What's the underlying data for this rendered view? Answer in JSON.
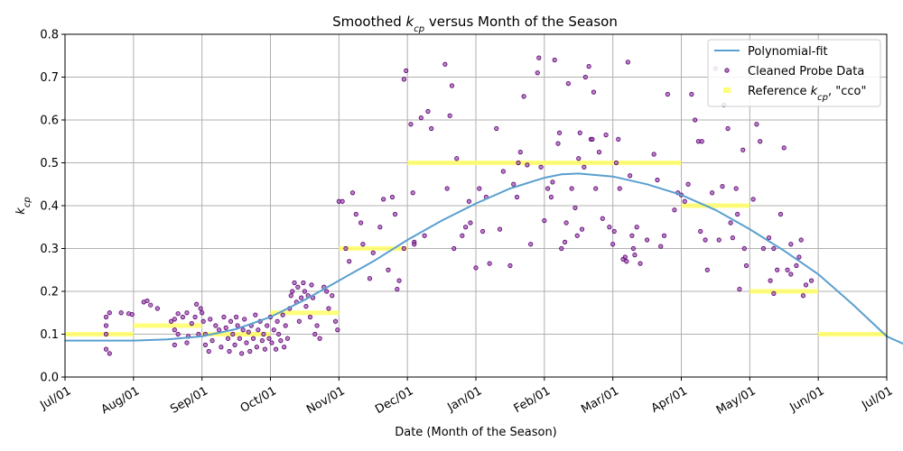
{
  "chart_data": {
    "type": "scatter",
    "title_parts": [
      "Smoothed ",
      "k",
      "cp",
      " versus Month of the Season"
    ],
    "xlabel": "Date (Month of the Season)",
    "ylabel_parts": [
      "k",
      "cp"
    ],
    "x_ticks": [
      "Jul/01",
      "Aug/01",
      "Sep/01",
      "Oct/01",
      "Nov/01",
      "Dec/01",
      "Jan/01",
      "Feb/01",
      "Mar/01",
      "Apr/01",
      "May/01",
      "Jun/01",
      "Jul/01"
    ],
    "y_ticks": [
      "0.0",
      "0.1",
      "0.2",
      "0.3",
      "0.4",
      "0.5",
      "0.6",
      "0.7",
      "0.8"
    ],
    "ylim": [
      0,
      0.8
    ],
    "grid": true,
    "legend_position": "top-right",
    "legend": [
      {
        "label": "Polynomial-fit"
      },
      {
        "label": "Cleaned Probe Data"
      },
      {
        "label_parts": [
          "Reference ",
          "k",
          "cp",
          ", \"cco\""
        ]
      }
    ],
    "colors": {
      "fit": "#5a9fcf",
      "probe_fill": "#a050b0",
      "probe_edge": "#5a0070",
      "reference": "#ffff66"
    },
    "series": [
      {
        "name": "Polynomial-fit",
        "kind": "line",
        "points": [
          [
            0,
            0.085
          ],
          [
            0.5,
            0.085
          ],
          [
            1,
            0.085
          ],
          [
            1.5,
            0.088
          ],
          [
            2,
            0.095
          ],
          [
            2.5,
            0.112
          ],
          [
            3,
            0.14
          ],
          [
            3.5,
            0.18
          ],
          [
            4,
            0.225
          ],
          [
            4.5,
            0.27
          ],
          [
            5,
            0.32
          ],
          [
            5.5,
            0.365
          ],
          [
            6,
            0.405
          ],
          [
            6.5,
            0.44
          ],
          [
            7,
            0.465
          ],
          [
            7.25,
            0.473
          ],
          [
            7.5,
            0.475
          ],
          [
            8,
            0.468
          ],
          [
            8.5,
            0.45
          ],
          [
            9,
            0.425
          ],
          [
            9.5,
            0.39
          ],
          [
            10,
            0.345
          ],
          [
            10.5,
            0.295
          ],
          [
            11,
            0.24
          ],
          [
            11.5,
            0.17
          ],
          [
            12,
            0.095
          ],
          [
            12.35,
            0.07
          ]
        ]
      },
      {
        "name": "Reference kcp, \"cco\"",
        "kind": "step",
        "segments": [
          [
            0,
            1,
            0.1
          ],
          [
            1,
            2,
            0.12
          ],
          [
            2,
            3,
            0.1
          ],
          [
            3,
            4,
            0.15
          ],
          [
            4,
            5,
            0.3
          ],
          [
            5,
            9,
            0.5
          ],
          [
            9,
            10,
            0.4
          ],
          [
            10,
            11,
            0.2
          ],
          [
            11,
            12,
            0.1
          ]
        ]
      },
      {
        "name": "Cleaned Probe Data",
        "kind": "scatter",
        "points": [
          [
            0.6,
            0.065
          ],
          [
            0.6,
            0.14
          ],
          [
            0.6,
            0.12
          ],
          [
            0.6,
            0.1
          ],
          [
            0.65,
            0.055
          ],
          [
            0.65,
            0.15
          ],
          [
            0.82,
            0.15
          ],
          [
            0.93,
            0.148
          ],
          [
            0.98,
            0.146
          ],
          [
            1.15,
            0.175
          ],
          [
            1.2,
            0.178
          ],
          [
            1.25,
            0.168
          ],
          [
            1.35,
            0.16
          ],
          [
            1.55,
            0.13
          ],
          [
            1.6,
            0.135
          ],
          [
            1.6,
            0.11
          ],
          [
            1.65,
            0.1
          ],
          [
            1.6,
            0.075
          ],
          [
            1.65,
            0.148
          ],
          [
            1.72,
            0.14
          ],
          [
            1.78,
            0.15
          ],
          [
            1.78,
            0.08
          ],
          [
            1.8,
            0.095
          ],
          [
            1.85,
            0.125
          ],
          [
            1.9,
            0.14
          ],
          [
            1.92,
            0.17
          ],
          [
            1.95,
            0.1
          ],
          [
            1.98,
            0.16
          ],
          [
            2.0,
            0.15
          ],
          [
            2.02,
            0.13
          ],
          [
            2.05,
            0.1
          ],
          [
            2.05,
            0.075
          ],
          [
            2.1,
            0.06
          ],
          [
            2.12,
            0.135
          ],
          [
            2.15,
            0.085
          ],
          [
            2.2,
            0.12
          ],
          [
            2.25,
            0.11
          ],
          [
            2.28,
            0.07
          ],
          [
            2.32,
            0.14
          ],
          [
            2.35,
            0.115
          ],
          [
            2.38,
            0.09
          ],
          [
            2.4,
            0.06
          ],
          [
            2.42,
            0.13
          ],
          [
            2.45,
            0.1
          ],
          [
            2.48,
            0.075
          ],
          [
            2.5,
            0.14
          ],
          [
            2.52,
            0.12
          ],
          [
            2.55,
            0.09
          ],
          [
            2.58,
            0.055
          ],
          [
            2.6,
            0.11
          ],
          [
            2.62,
            0.135
          ],
          [
            2.65,
            0.08
          ],
          [
            2.68,
            0.105
          ],
          [
            2.7,
            0.06
          ],
          [
            2.72,
            0.12
          ],
          [
            2.75,
            0.09
          ],
          [
            2.78,
            0.145
          ],
          [
            2.8,
            0.07
          ],
          [
            2.82,
            0.11
          ],
          [
            2.85,
            0.13
          ],
          [
            2.88,
            0.085
          ],
          [
            2.9,
            0.1
          ],
          [
            2.92,
            0.065
          ],
          [
            2.95,
            0.12
          ],
          [
            2.98,
            0.09
          ],
          [
            3.0,
            0.14
          ],
          [
            3.02,
            0.08
          ],
          [
            3.05,
            0.11
          ],
          [
            3.08,
            0.065
          ],
          [
            3.1,
            0.13
          ],
          [
            3.12,
            0.1
          ],
          [
            3.15,
            0.085
          ],
          [
            3.18,
            0.145
          ],
          [
            3.2,
            0.07
          ],
          [
            3.22,
            0.12
          ],
          [
            3.25,
            0.09
          ],
          [
            3.28,
            0.16
          ],
          [
            3.3,
            0.19
          ],
          [
            3.32,
            0.2
          ],
          [
            3.35,
            0.22
          ],
          [
            3.38,
            0.175
          ],
          [
            3.4,
            0.21
          ],
          [
            3.42,
            0.13
          ],
          [
            3.45,
            0.185
          ],
          [
            3.48,
            0.22
          ],
          [
            3.5,
            0.2
          ],
          [
            3.52,
            0.165
          ],
          [
            3.55,
            0.19
          ],
          [
            3.58,
            0.14
          ],
          [
            3.6,
            0.215
          ],
          [
            3.62,
            0.185
          ],
          [
            3.65,
            0.1
          ],
          [
            3.68,
            0.12
          ],
          [
            3.72,
            0.09
          ],
          [
            3.78,
            0.21
          ],
          [
            3.82,
            0.2
          ],
          [
            3.85,
            0.16
          ],
          [
            3.9,
            0.19
          ],
          [
            3.95,
            0.13
          ],
          [
            3.98,
            0.11
          ],
          [
            4.0,
            0.41
          ],
          [
            4.05,
            0.41
          ],
          [
            4.1,
            0.3
          ],
          [
            4.15,
            0.27
          ],
          [
            4.2,
            0.43
          ],
          [
            4.25,
            0.38
          ],
          [
            4.32,
            0.36
          ],
          [
            4.35,
            0.31
          ],
          [
            4.45,
            0.23
          ],
          [
            4.5,
            0.29
          ],
          [
            4.6,
            0.35
          ],
          [
            4.65,
            0.415
          ],
          [
            4.72,
            0.25
          ],
          [
            4.78,
            0.42
          ],
          [
            4.82,
            0.38
          ],
          [
            4.85,
            0.205
          ],
          [
            4.88,
            0.225
          ],
          [
            4.95,
            0.3
          ],
          [
            4.95,
            0.695
          ],
          [
            4.98,
            0.715
          ],
          [
            5.05,
            0.59
          ],
          [
            5.08,
            0.43
          ],
          [
            5.1,
            0.315
          ],
          [
            5.1,
            0.31
          ],
          [
            5.2,
            0.605
          ],
          [
            5.25,
            0.33
          ],
          [
            5.3,
            0.62
          ],
          [
            5.35,
            0.58
          ],
          [
            5.55,
            0.73
          ],
          [
            5.58,
            0.44
          ],
          [
            5.62,
            0.61
          ],
          [
            5.65,
            0.68
          ],
          [
            5.68,
            0.3
          ],
          [
            5.72,
            0.51
          ],
          [
            5.8,
            0.33
          ],
          [
            5.85,
            0.35
          ],
          [
            5.9,
            0.41
          ],
          [
            5.92,
            0.36
          ],
          [
            6.0,
            0.255
          ],
          [
            6.05,
            0.44
          ],
          [
            6.1,
            0.34
          ],
          [
            6.15,
            0.42
          ],
          [
            6.2,
            0.265
          ],
          [
            6.3,
            0.58
          ],
          [
            6.35,
            0.345
          ],
          [
            6.4,
            0.48
          ],
          [
            6.5,
            0.26
          ],
          [
            6.55,
            0.45
          ],
          [
            6.6,
            0.42
          ],
          [
            6.62,
            0.5
          ],
          [
            6.65,
            0.525
          ],
          [
            6.7,
            0.655
          ],
          [
            6.75,
            0.495
          ],
          [
            6.8,
            0.31
          ],
          [
            6.9,
            0.71
          ],
          [
            6.92,
            0.745
          ],
          [
            6.95,
            0.49
          ],
          [
            7.0,
            0.365
          ],
          [
            7.05,
            0.44
          ],
          [
            7.1,
            0.42
          ],
          [
            7.12,
            0.455
          ],
          [
            7.15,
            0.74
          ],
          [
            7.2,
            0.545
          ],
          [
            7.22,
            0.57
          ],
          [
            7.25,
            0.3
          ],
          [
            7.3,
            0.315
          ],
          [
            7.32,
            0.36
          ],
          [
            7.35,
            0.685
          ],
          [
            7.4,
            0.44
          ],
          [
            7.45,
            0.395
          ],
          [
            7.48,
            0.33
          ],
          [
            7.5,
            0.51
          ],
          [
            7.52,
            0.57
          ],
          [
            7.55,
            0.345
          ],
          [
            7.58,
            0.49
          ],
          [
            7.6,
            0.7
          ],
          [
            7.65,
            0.725
          ],
          [
            7.68,
            0.555
          ],
          [
            7.7,
            0.555
          ],
          [
            7.72,
            0.665
          ],
          [
            7.75,
            0.44
          ],
          [
            7.8,
            0.525
          ],
          [
            7.85,
            0.37
          ],
          [
            7.9,
            0.565
          ],
          [
            7.95,
            0.35
          ],
          [
            8.0,
            0.31
          ],
          [
            8.02,
            0.34
          ],
          [
            8.05,
            0.5
          ],
          [
            8.08,
            0.555
          ],
          [
            8.1,
            0.44
          ],
          [
            8.15,
            0.275
          ],
          [
            8.18,
            0.28
          ],
          [
            8.2,
            0.27
          ],
          [
            8.22,
            0.735
          ],
          [
            8.25,
            0.47
          ],
          [
            8.28,
            0.33
          ],
          [
            8.3,
            0.3
          ],
          [
            8.32,
            0.285
          ],
          [
            8.35,
            0.35
          ],
          [
            8.4,
            0.265
          ],
          [
            8.5,
            0.32
          ],
          [
            8.6,
            0.52
          ],
          [
            8.65,
            0.46
          ],
          [
            8.7,
            0.305
          ],
          [
            8.75,
            0.33
          ],
          [
            8.8,
            0.66
          ],
          [
            8.9,
            0.39
          ],
          [
            8.95,
            0.43
          ],
          [
            9.0,
            0.425
          ],
          [
            9.05,
            0.41
          ],
          [
            9.1,
            0.45
          ],
          [
            9.15,
            0.66
          ],
          [
            9.2,
            0.6
          ],
          [
            9.25,
            0.55
          ],
          [
            9.28,
            0.34
          ],
          [
            9.3,
            0.55
          ],
          [
            9.35,
            0.32
          ],
          [
            9.38,
            0.25
          ],
          [
            9.45,
            0.43
          ],
          [
            9.5,
            0.72
          ],
          [
            9.55,
            0.32
          ],
          [
            9.6,
            0.445
          ],
          [
            9.62,
            0.635
          ],
          [
            9.68,
            0.58
          ],
          [
            9.72,
            0.36
          ],
          [
            9.75,
            0.325
          ],
          [
            9.8,
            0.44
          ],
          [
            9.82,
            0.38
          ],
          [
            9.85,
            0.205
          ],
          [
            9.9,
            0.53
          ],
          [
            9.92,
            0.3
          ],
          [
            9.95,
            0.26
          ],
          [
            10.05,
            0.415
          ],
          [
            10.1,
            0.59
          ],
          [
            10.15,
            0.55
          ],
          [
            10.2,
            0.3
          ],
          [
            10.28,
            0.325
          ],
          [
            10.35,
            0.3
          ],
          [
            10.4,
            0.25
          ],
          [
            10.45,
            0.38
          ],
          [
            10.5,
            0.535
          ],
          [
            10.55,
            0.25
          ],
          [
            10.6,
            0.31
          ],
          [
            10.75,
            0.32
          ],
          [
            10.3,
            0.225
          ],
          [
            10.35,
            0.195
          ],
          [
            10.6,
            0.24
          ],
          [
            10.68,
            0.26
          ],
          [
            10.72,
            0.28
          ],
          [
            10.78,
            0.19
          ],
          [
            10.82,
            0.215
          ],
          [
            10.9,
            0.225
          ]
        ]
      }
    ]
  }
}
